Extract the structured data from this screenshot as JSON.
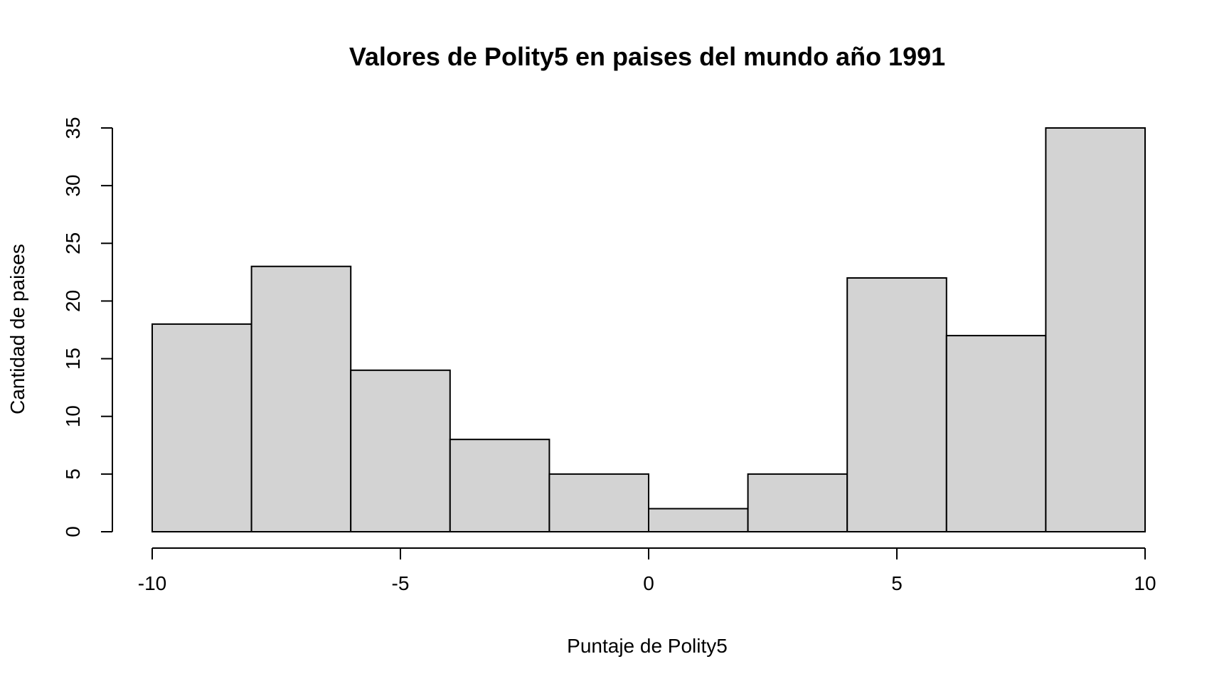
{
  "chart_data": {
    "type": "bar",
    "title": "Valores de Polity5 en paises del mundo año 1991",
    "xlabel": "Puntaje de Polity5",
    "ylabel": "Cantidad de paises",
    "xlim": [
      -10,
      10
    ],
    "ylim": [
      0,
      35
    ],
    "grid": false,
    "bar_fill": "#d3d3d3",
    "bar_stroke": "#000000",
    "bins": [
      {
        "start": -10,
        "end": -8,
        "count": 18
      },
      {
        "start": -8,
        "end": -6,
        "count": 23
      },
      {
        "start": -6,
        "end": -4,
        "count": 14
      },
      {
        "start": -4,
        "end": -2,
        "count": 8
      },
      {
        "start": -2,
        "end": 0,
        "count": 5
      },
      {
        "start": 0,
        "end": 2,
        "count": 2
      },
      {
        "start": 2,
        "end": 4,
        "count": 5
      },
      {
        "start": 4,
        "end": 6,
        "count": 22
      },
      {
        "start": 6,
        "end": 8,
        "count": 17
      },
      {
        "start": 8,
        "end": 10,
        "count": 35
      }
    ],
    "x_ticks": [
      {
        "value": -10,
        "label": "-10"
      },
      {
        "value": -5,
        "label": "-5"
      },
      {
        "value": 0,
        "label": "0"
      },
      {
        "value": 5,
        "label": "5"
      },
      {
        "value": 10,
        "label": "10"
      }
    ],
    "y_ticks": [
      {
        "value": 0,
        "label": "0"
      },
      {
        "value": 5,
        "label": "5"
      },
      {
        "value": 10,
        "label": "10"
      },
      {
        "value": 15,
        "label": "15"
      },
      {
        "value": 20,
        "label": "20"
      },
      {
        "value": 25,
        "label": "25"
      },
      {
        "value": 30,
        "label": "30"
      },
      {
        "value": 35,
        "label": "35"
      }
    ]
  }
}
